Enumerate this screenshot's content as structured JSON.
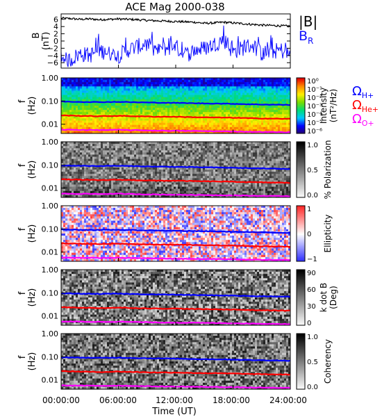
{
  "figure": {
    "title": "ACE Mag 2000-038",
    "xlabel": "Time (UT)",
    "xticks": [
      "00:00:00",
      "06:00:00",
      "12:00:00",
      "18:00:00",
      "24:00:00"
    ]
  },
  "legend": {
    "b_total": "|B|",
    "b_r": "B",
    "b_r_sub": "R",
    "omega": "Ω",
    "h_sub": "H+",
    "he_sub": "He+",
    "o_sub": "O+"
  },
  "colors": {
    "b_total": "#000000",
    "b_r": "#1010ff",
    "gyro_h": "#0000ff",
    "gyro_he": "#ff0000",
    "gyro_o": "#ff00ff"
  },
  "chart_data": [
    {
      "type": "line",
      "panel": "B",
      "ylabel": "B",
      "yunit": "(nT)",
      "ylim": [
        -7.5,
        7.5
      ],
      "yticks": [
        "6",
        "4",
        "2",
        "0",
        "−2",
        "−4",
        "−6"
      ],
      "xlim": [
        0,
        24
      ],
      "x": [
        0,
        1,
        2,
        3,
        4,
        5,
        6,
        7,
        8,
        9,
        10,
        11,
        12,
        13,
        14,
        15,
        16,
        17,
        18,
        19,
        20,
        21,
        22,
        23,
        24
      ],
      "series": [
        {
          "name": "|B|",
          "values": [
            6.3,
            6.2,
            6.0,
            6.1,
            5.9,
            6.0,
            6.1,
            6.0,
            5.9,
            5.7,
            5.6,
            5.5,
            5.4,
            5.3,
            5.2,
            4.9,
            5.0,
            5.2,
            5.0,
            4.8,
            4.6,
            4.4,
            4.3,
            4.2,
            4.1
          ]
        },
        {
          "name": "B_R",
          "values": [
            -5.5,
            -5.2,
            -3.5,
            -4.0,
            -2.5,
            -3.5,
            -4.0,
            -2.5,
            -1.5,
            -1.0,
            -3.0,
            -2.0,
            -1.5,
            -4.0,
            -2.5,
            -2.0,
            -1.0,
            0.5,
            -3.0,
            -2.0,
            -1.0,
            -3.5,
            -3.0,
            -2.5,
            -4.0
          ]
        }
      ]
    },
    {
      "type": "heatmap",
      "panel": "intensity",
      "ylabel": "f",
      "yunit": "(Hz)",
      "yscale": "log",
      "ylim": [
        0.004,
        1.0
      ],
      "yticks": [
        "1.00",
        "0.10",
        "0.01"
      ],
      "colorbar": {
        "label": "Intensity",
        "unit": "(nT²/Hz)",
        "scale": "log",
        "ticks": [
          "10⁰",
          "10⁻¹",
          "10⁻²",
          "10⁻³",
          "10⁻⁴",
          "10⁻⁵",
          "10⁻⁶"
        ],
        "palette": "rainbow"
      }
    },
    {
      "type": "heatmap",
      "panel": "polarization",
      "ylabel": "f",
      "yunit": "(Hz)",
      "yscale": "log",
      "ylim": [
        0.004,
        1.0
      ],
      "yticks": [
        "1.00",
        "0.10",
        "0.01"
      ],
      "colorbar": {
        "label": "% Polarization",
        "ticks": [
          "1.0",
          "0.5",
          "0.0"
        ],
        "palette": "gray"
      }
    },
    {
      "type": "heatmap",
      "panel": "ellipticity",
      "ylabel": "f",
      "yunit": "(Hz)",
      "yscale": "log",
      "ylim": [
        0.004,
        1.0
      ],
      "yticks": [
        "1.00",
        "0.10",
        "0.01"
      ],
      "colorbar": {
        "label": "Ellipticity",
        "ticks": [
          "1",
          "0",
          "−1"
        ],
        "palette": "blue-white-red"
      }
    },
    {
      "type": "heatmap",
      "panel": "kdotb",
      "ylabel": "f",
      "yunit": "(Hz)",
      "yscale": "log",
      "ylim": [
        0.004,
        1.0
      ],
      "yticks": [
        "1.00",
        "0.10",
        "0.01"
      ],
      "colorbar": {
        "label": "k dot B",
        "unit": "(Deg)",
        "ticks": [
          "90",
          "60",
          "30",
          "0"
        ],
        "palette": "gray"
      }
    },
    {
      "type": "heatmap",
      "panel": "coherency",
      "ylabel": "f",
      "yunit": "(Hz)",
      "yscale": "log",
      "ylim": [
        0.004,
        1.0
      ],
      "yticks": [
        "1.00",
        "0.10",
        "0.01"
      ],
      "colorbar": {
        "label": "Coherency",
        "ticks": [
          "1.0",
          "0.5",
          "0.0"
        ],
        "palette": "gray"
      }
    }
  ],
  "gyrofrequencies": {
    "x": [
      0,
      2,
      4,
      6,
      8,
      10,
      12,
      14,
      16,
      18,
      20,
      22,
      24
    ],
    "H+": [
      0.095,
      0.092,
      0.09,
      0.092,
      0.088,
      0.085,
      0.083,
      0.08,
      0.078,
      0.076,
      0.072,
      0.07,
      0.068
    ],
    "He+": [
      0.024,
      0.023,
      0.022,
      0.023,
      0.022,
      0.021,
      0.021,
      0.02,
      0.0195,
      0.019,
      0.018,
      0.0175,
      0.017
    ],
    "O+": [
      0.0058,
      0.0057,
      0.0056,
      0.0057,
      0.0055,
      0.0053,
      0.0052,
      0.0051,
      0.005,
      0.0049,
      0.0047,
      0.0046,
      0.0045
    ]
  }
}
